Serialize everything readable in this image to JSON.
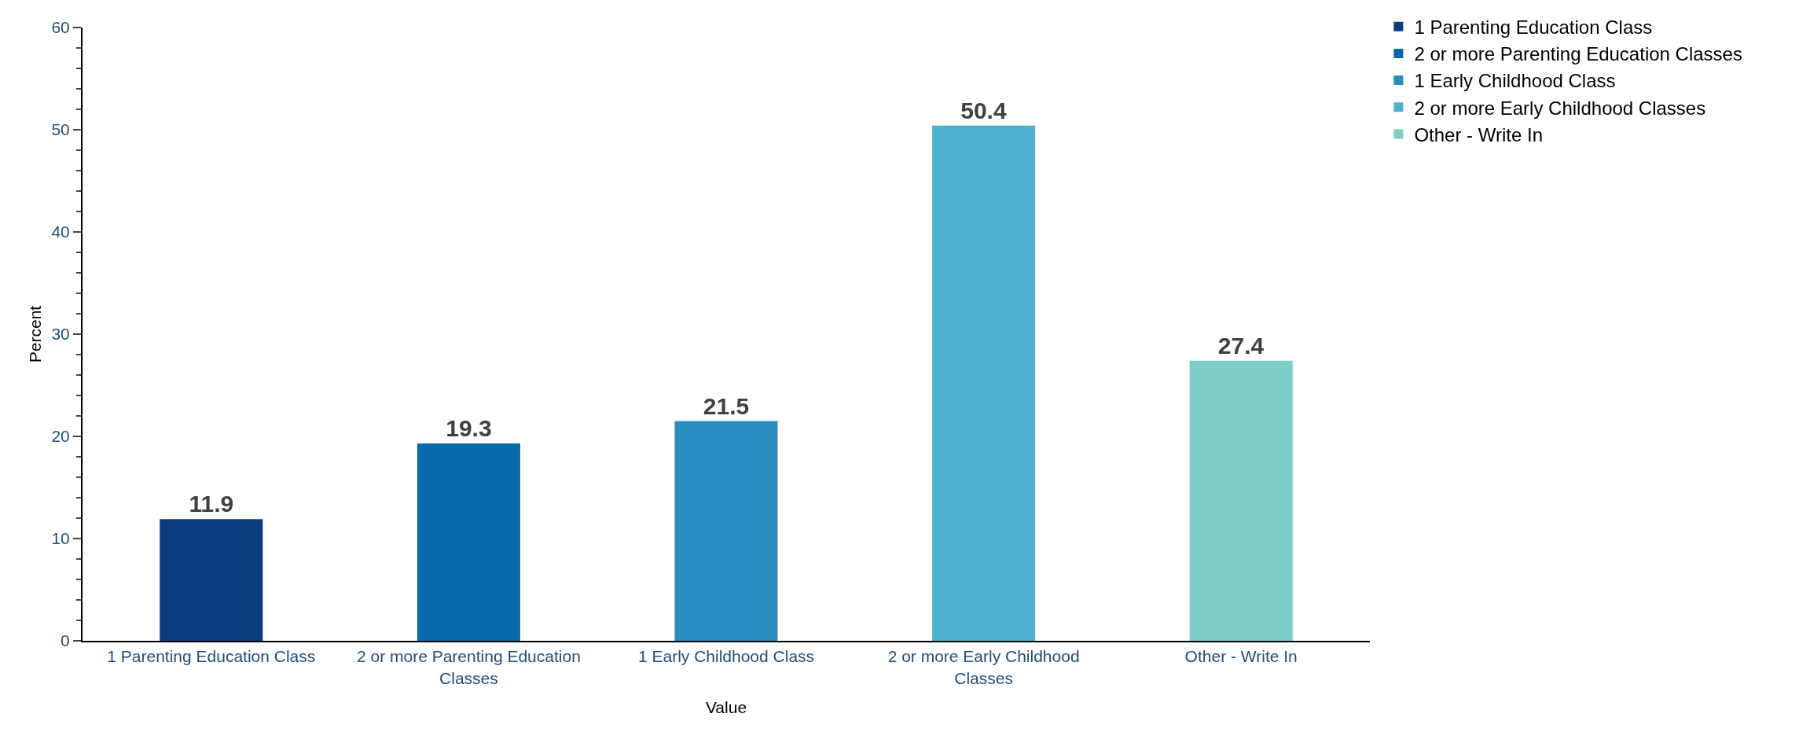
{
  "chart_data": {
    "type": "bar",
    "xlabel": "Value",
    "ylabel": "Percent",
    "categories": [
      "1 Parenting Education Class",
      "2 or more Parenting Education Classes",
      "1 Early Childhood Class",
      "2 or more Early Childhood Classes",
      "Other - Write In"
    ],
    "series": [
      {
        "name": "1 Parenting Education Class",
        "color": "#0b3d7e",
        "values": [
          11.9,
          null,
          null,
          null,
          null
        ]
      },
      {
        "name": "2 or more Parenting Education Classes",
        "color": "#0a68ad",
        "values": [
          null,
          19.3,
          null,
          null,
          null
        ]
      },
      {
        "name": "1 Early Childhood Class",
        "color": "#2b8dbf",
        "values": [
          null,
          null,
          21.5,
          null,
          null
        ]
      },
      {
        "name": "2 or more Early Childhood Classes",
        "color": "#4eb1d1",
        "values": [
          null,
          null,
          null,
          50.4,
          null
        ]
      },
      {
        "name": "Other - Write In",
        "color": "#7dcdc6",
        "values": [
          null,
          null,
          null,
          null,
          27.4
        ]
      }
    ],
    "ylim": [
      0,
      60
    ],
    "yticks": [
      0,
      10,
      20,
      30,
      40,
      50,
      60
    ],
    "grid": false,
    "legend": "top right",
    "data_labels": true
  }
}
